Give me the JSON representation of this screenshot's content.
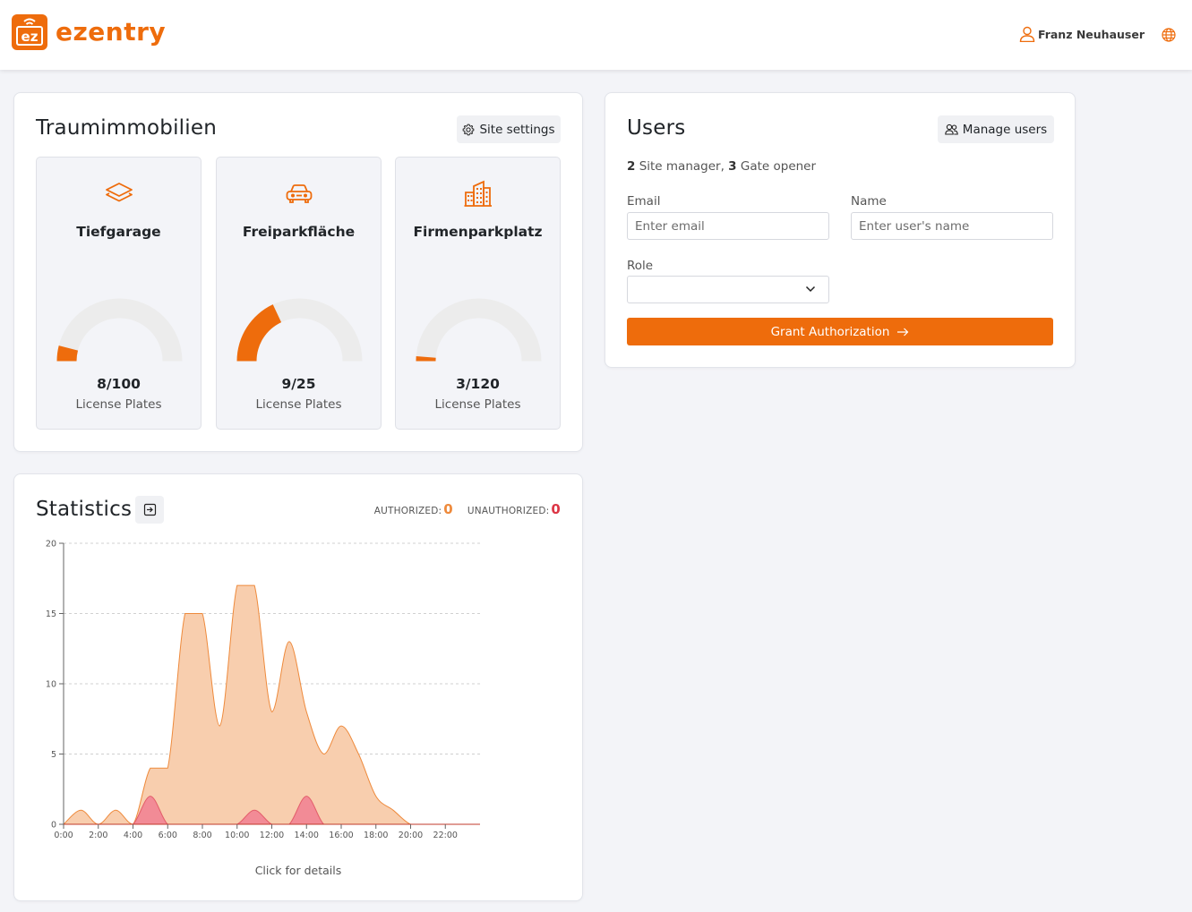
{
  "header": {
    "brand": "ezentry",
    "logo_text": "ez",
    "user_name": "Franz Neuhauser",
    "brand_color": "#ee6c0c"
  },
  "site": {
    "title": "Traumimmobilien",
    "settings_label": "Site settings",
    "areas": [
      {
        "name": "Tiefgarage",
        "icon": "layers-icon",
        "used": 8,
        "total": 100,
        "count_text": "8/100",
        "unit": "License Plates"
      },
      {
        "name": "Freiparkfläche",
        "icon": "car-icon",
        "used": 9,
        "total": 25,
        "count_text": "9/25",
        "unit": "License Plates"
      },
      {
        "name": "Firmenparkplatz",
        "icon": "building-icon",
        "used": 3,
        "total": 120,
        "count_text": "3/120",
        "unit": "License Plates"
      }
    ]
  },
  "users": {
    "title": "Users",
    "manage_label": "Manage users",
    "summary_site_manager_count": "2",
    "summary_site_manager_label": " Site manager, ",
    "summary_gate_opener_count": "3",
    "summary_gate_opener_label": " Gate opener",
    "email_label": "Email",
    "email_placeholder": "Enter email",
    "name_label": "Name",
    "name_placeholder": "Enter user's name",
    "role_label": "Role",
    "role_value": "",
    "grant_label": "Grant Authorization"
  },
  "statistics": {
    "title": "Statistics",
    "authorized_label": "AUTHORIZED:",
    "authorized_value": "0",
    "unauthorized_label": "UNAUTHORIZED:",
    "unauthorized_value": "0",
    "footer": "Click for details",
    "authorized_color": "#ee6c0c",
    "unauthorized_color": "#dc3545"
  },
  "chart_data": {
    "type": "area",
    "x": [
      "0:00",
      "1:00",
      "2:00",
      "3:00",
      "4:00",
      "5:00",
      "6:00",
      "7:00",
      "8:00",
      "9:00",
      "10:00",
      "11:00",
      "12:00",
      "13:00",
      "14:00",
      "15:00",
      "16:00",
      "17:00",
      "18:00",
      "19:00",
      "20:00",
      "21:00",
      "22:00",
      "23:00"
    ],
    "x_ticks": [
      "0:00",
      "2:00",
      "4:00",
      "6:00",
      "8:00",
      "10:00",
      "12:00",
      "14:00",
      "16:00",
      "18:00",
      "20:00",
      "22:00"
    ],
    "y_ticks": [
      0,
      5,
      10,
      15,
      20
    ],
    "ylim": [
      0,
      20
    ],
    "grid": true,
    "series": [
      {
        "values": [
          0,
          1,
          0,
          1,
          0,
          4,
          4,
          15,
          15,
          7,
          17,
          17,
          8,
          13,
          8,
          5,
          7,
          5,
          2,
          1,
          0,
          0,
          0,
          0
        ],
        "color": "#f8ceae",
        "stroke": "#ee8a3c"
      },
      {
        "values": [
          0,
          0,
          0,
          0,
          0,
          2,
          0,
          0,
          0,
          0,
          0,
          1,
          0,
          0,
          2,
          0,
          0,
          0,
          0,
          0,
          0,
          0,
          0,
          0
        ],
        "color": "#f28b96",
        "stroke": "#e35d6a"
      }
    ]
  }
}
